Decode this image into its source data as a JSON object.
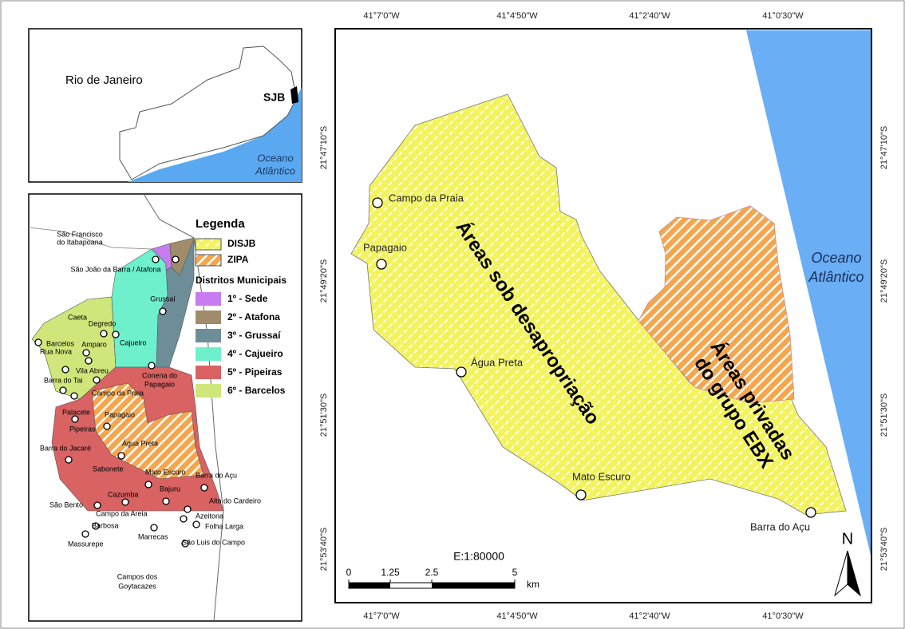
{
  "inset_map": {
    "state_label": "Rio de Janeiro",
    "municipality_label": "SJB",
    "ocean_label": [
      "Oceano",
      "Atlântico"
    ]
  },
  "district_map": {
    "neighbor_labels": [
      [
        "São Francisco",
        "do Itabapoana"
      ],
      [
        "Campos dos",
        "Goytacazes"
      ]
    ],
    "places": [
      "São João da Barra / Atafona",
      "Grussaí",
      "Caeta",
      "Degredo",
      "Barcelos",
      "Rua Nova",
      "Amparo",
      "Cajueiro",
      "Vila Abreu",
      "Barra do Tai",
      "Campo da Praia",
      "Palacete",
      "Pipeiras",
      "Papagaio",
      "Conena do",
      "Papagaio",
      "Água Preta",
      "Barra do Jacaré",
      "Sabonete",
      "Mato Escuro",
      "Barra do Açu",
      "Bajuru",
      "Cazumba",
      "São Bento",
      "Alto do Cardeiro",
      "Campo da Areia",
      "Azeitona",
      "Barbosa",
      "Folha Larga",
      "Massurepe",
      "Marrecas",
      "São Luis do Campo"
    ],
    "legend": {
      "title": "Legenda",
      "areas": [
        "DISJB",
        "ZIPA"
      ],
      "districts_title": "Distritos Municipais",
      "districts": [
        "1º - Sede",
        "2º - Atafona",
        "3º - Grussaí",
        "4º - Cajueiro",
        "5º - Pipeiras",
        "6º - Barcelos"
      ]
    }
  },
  "main_map": {
    "x_ticks": [
      "41°7'0\"W",
      "41°4'50\"W",
      "41°2'40\"W",
      "41°0'30\"W"
    ],
    "y_ticks": [
      "21°47'10\"S",
      "21°49'20\"S",
      "21°51'30\"S",
      "21°53'40\"S"
    ],
    "places": [
      "Campo da Praia",
      "Papagaio",
      "Água Preta",
      "Mato Escuro",
      "Barra do Açu"
    ],
    "area_labels": {
      "expropriation": "Áreas sob desapropriação",
      "private": [
        "Áreas privadas",
        "do grupo EBX"
      ]
    },
    "ocean_label": [
      "Oceano",
      "Atlântico"
    ],
    "scale": {
      "label": "E:1:80000",
      "ticks": [
        0,
        1.25,
        2.5,
        5
      ],
      "unit": "km"
    },
    "north": "N"
  }
}
